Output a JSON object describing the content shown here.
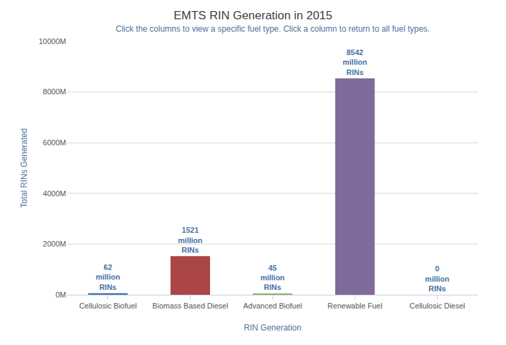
{
  "chart_data": {
    "type": "bar",
    "title": "EMTS RIN Generation in 2015",
    "subtitle": "Click the columns to view a specific fuel type. Click a column to return to all fuel types.",
    "x_label": "RIN Generation",
    "y_label": "Total RINs Generated",
    "categories": [
      "Cellulosic Biofuel",
      "Biomass Based Diesel",
      "Advanced Biofuel",
      "Renewable Fuel",
      "Cellulosic Diesel"
    ],
    "values": [
      62,
      1521,
      45,
      8542,
      0
    ],
    "value_labels": [
      "62 million RINs",
      "1521 million RINs",
      "45 million RINs",
      "8542 million RINs",
      "0 million RINs"
    ],
    "colors": [
      "#4572a7",
      "#aa4643",
      "#89a54e",
      "#80699b",
      "#3d96ae"
    ],
    "ylim": [
      0,
      10000
    ],
    "yticks": [
      {
        "value": 0,
        "label": "0M"
      },
      {
        "value": 2000,
        "label": "2000M"
      },
      {
        "value": 4000,
        "label": "4000M"
      },
      {
        "value": 6000,
        "label": "6000M"
      },
      {
        "value": 8000,
        "label": "8000M"
      },
      {
        "value": 10000,
        "label": "10000M"
      }
    ],
    "grid": true,
    "data_labels": true
  }
}
